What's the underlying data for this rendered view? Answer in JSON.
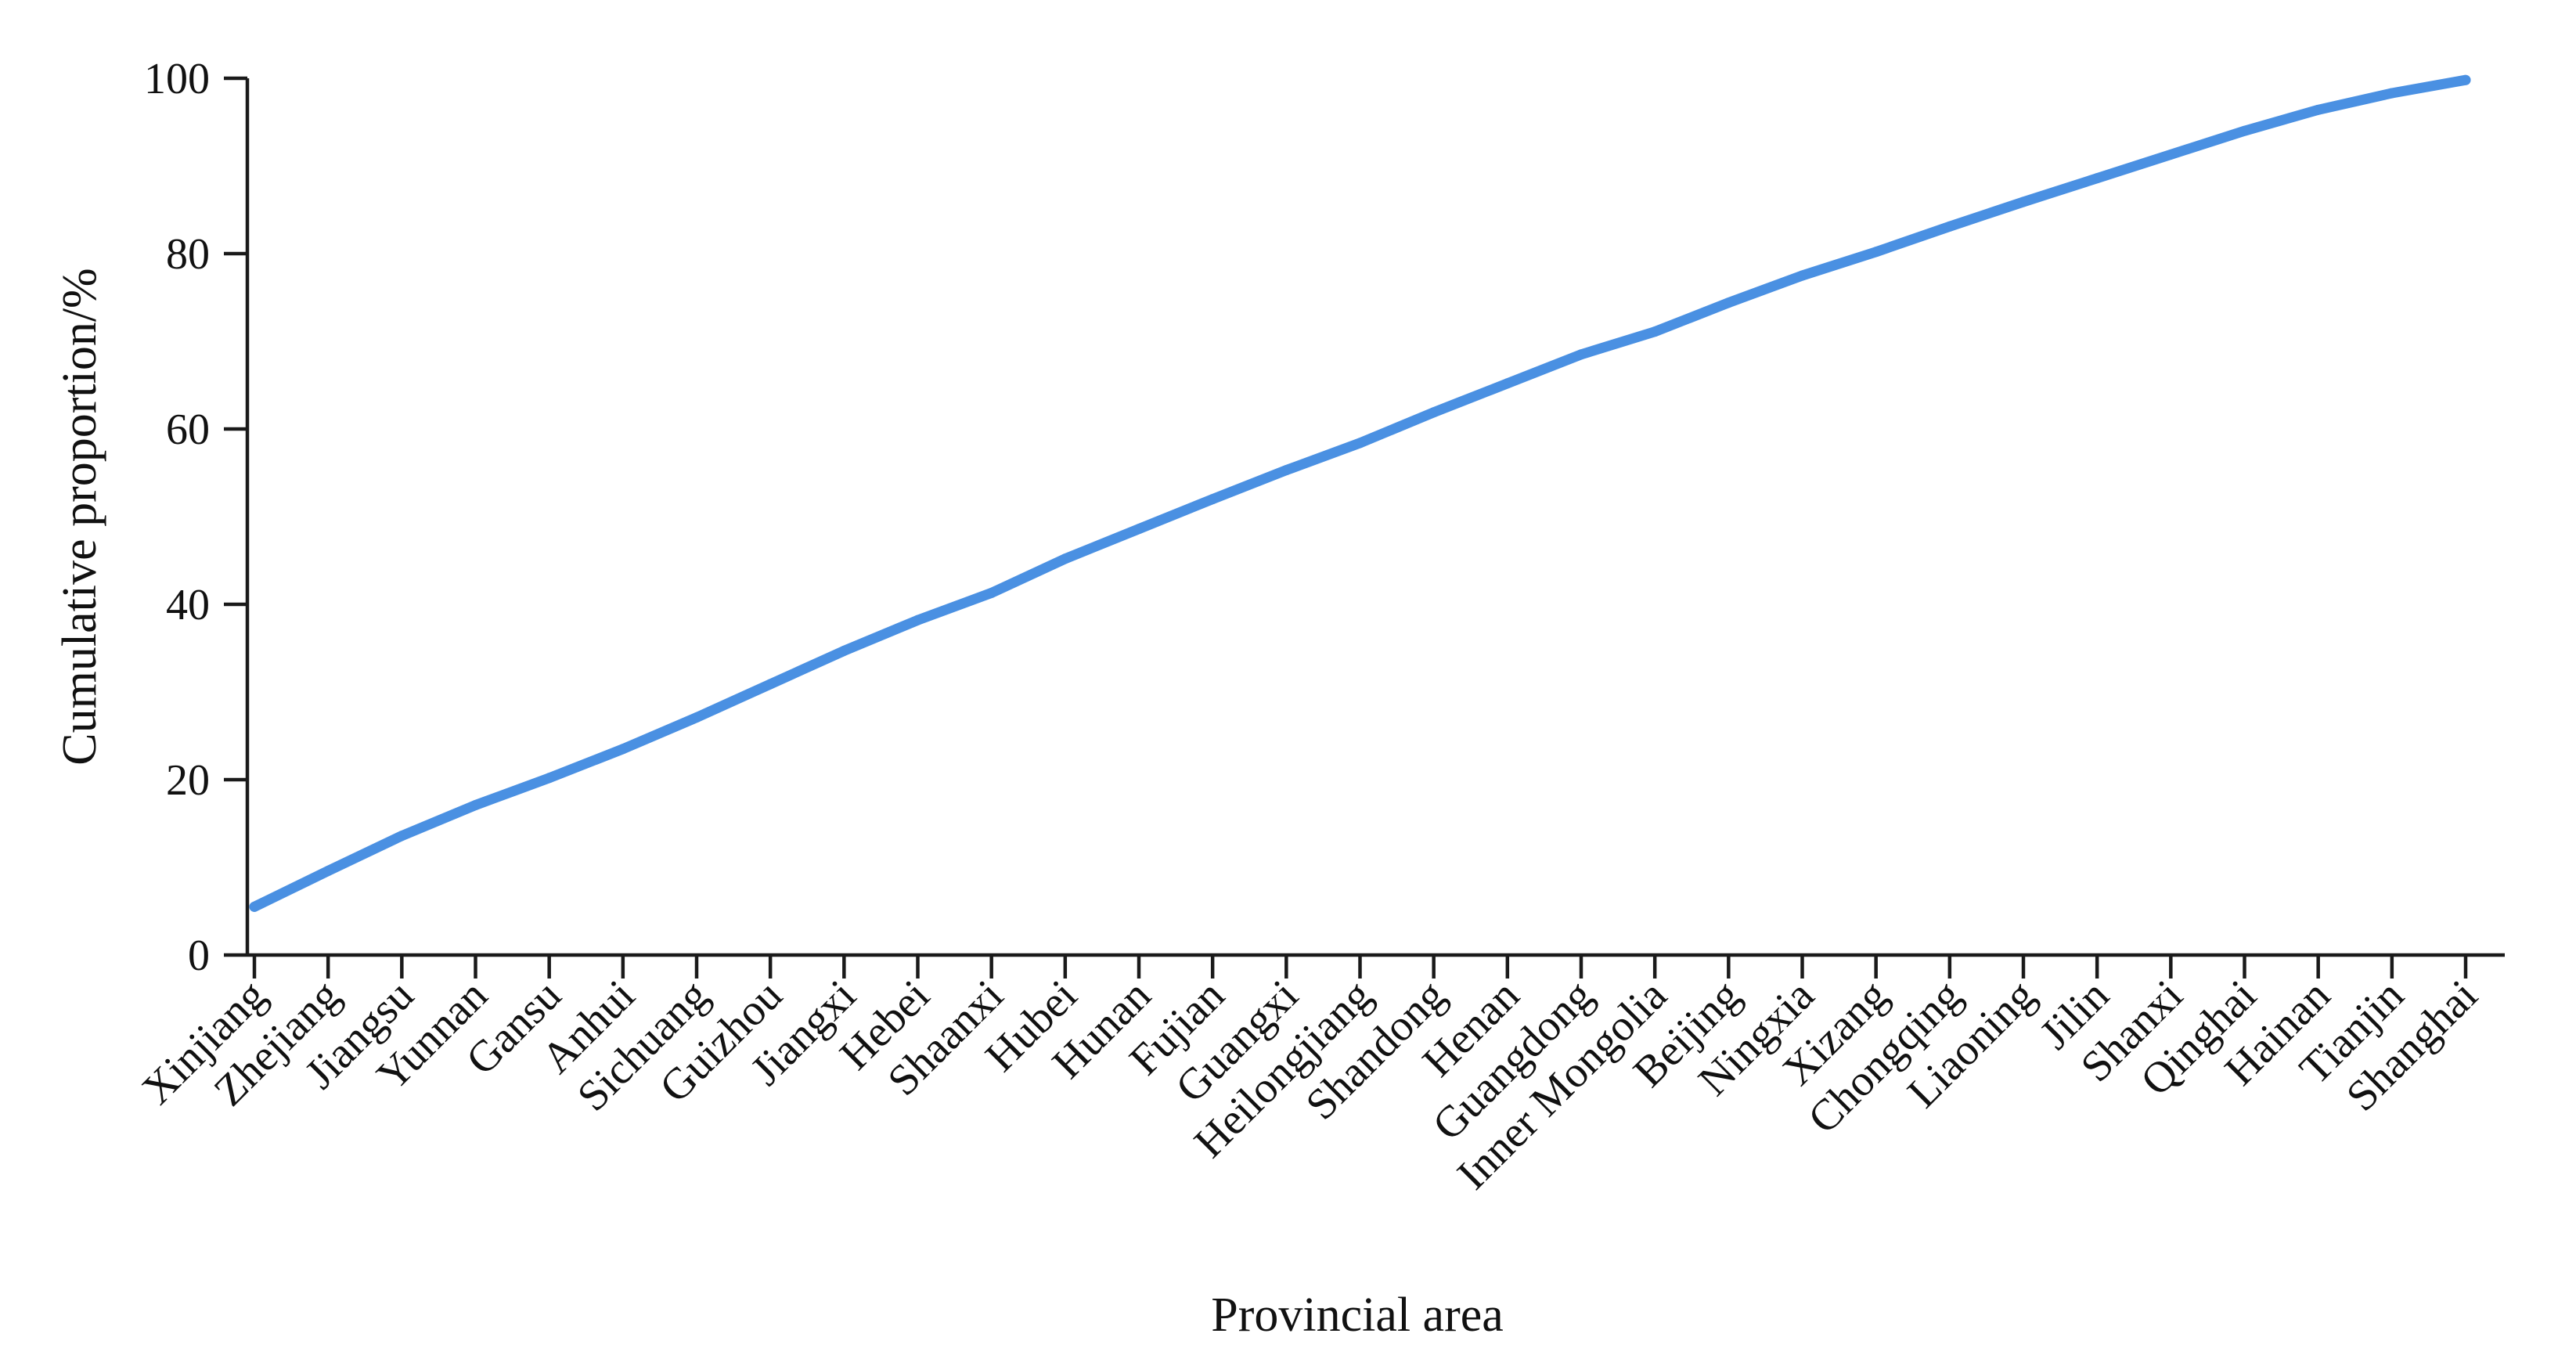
{
  "chart_data": {
    "type": "line",
    "xlabel": "Provincial area",
    "ylabel": "Cumulative proportion/%",
    "ylim": [
      0,
      100
    ],
    "yticks": [
      0,
      20,
      40,
      60,
      80,
      100
    ],
    "grid": false,
    "legend": "none",
    "line_color": "#4a90e2",
    "categories": [
      "Xinjiang",
      "Zhejiang",
      "Jiangsu",
      "Yunnan",
      "Gansu",
      "Anhui",
      "Sichuang",
      "Guizhou",
      "Jiangxi",
      "Hebei",
      "Shaanxi",
      "Hubei",
      "Hunan",
      "Fujian",
      "Guangxi",
      "Heilongjiang",
      "Shandong",
      "Henan",
      "Guangdong",
      "Inner Mongolia",
      "Beijing",
      "Ningxia",
      "Xizang",
      "Chongqing",
      "Liaoning",
      "Jilin",
      "Shanxi",
      "Qinghai",
      "Hainan",
      "Tianjin",
      "Shanghai"
    ],
    "series": [
      {
        "values": [
          5.5,
          9.6,
          13.6,
          17.1,
          20.2,
          23.5,
          27.1,
          30.9,
          34.7,
          38.2,
          41.3,
          45.2,
          48.6,
          52.0,
          55.3,
          58.4,
          61.9,
          65.2,
          68.5,
          71.1,
          74.4,
          77.5,
          80.2,
          83.1,
          85.9,
          88.6,
          91.3,
          94.0,
          96.4,
          98.3,
          99.8
        ]
      }
    ]
  }
}
